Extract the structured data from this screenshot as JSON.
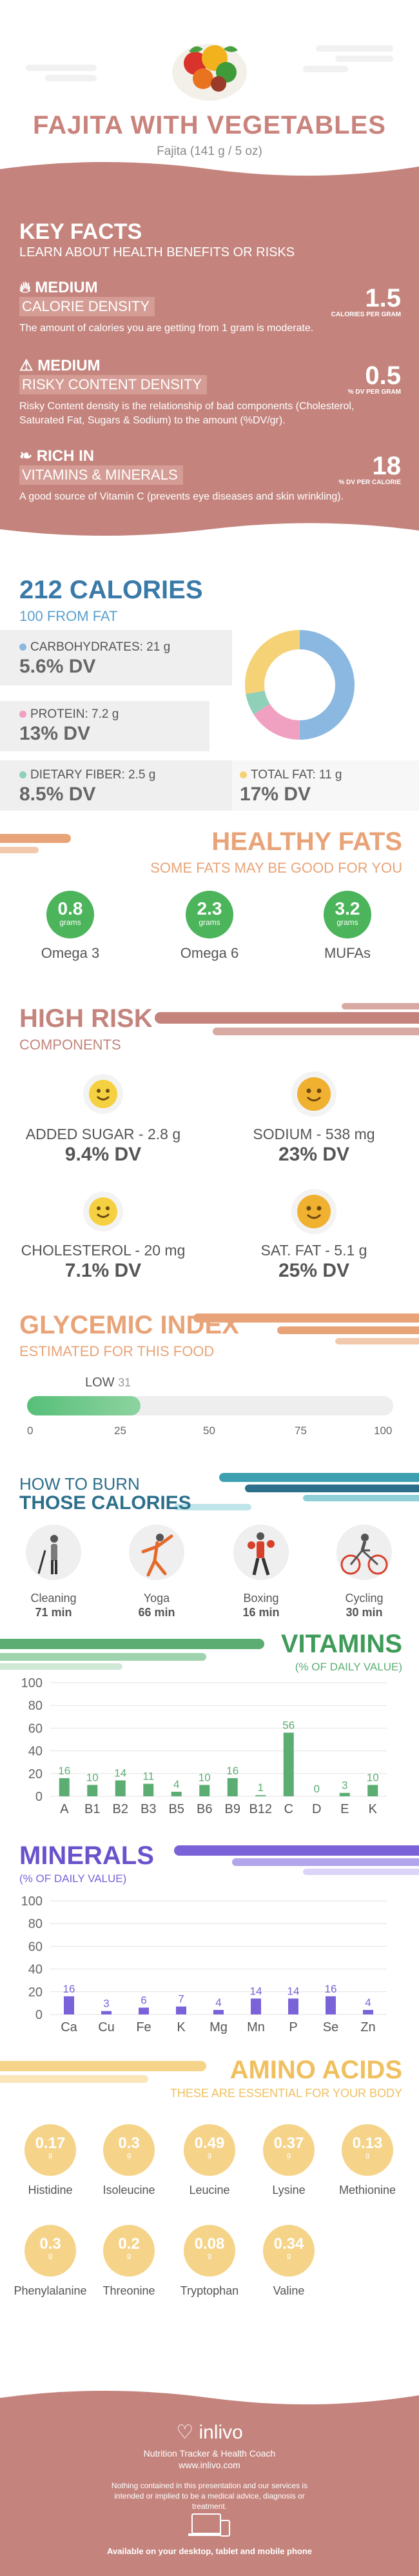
{
  "header": {
    "title": "FAJITA WITH VEGETABLES",
    "subtitle": "Fajita (141 g / 5 oz)"
  },
  "key_facts": {
    "title": "KEY FACTS",
    "subtitle": "LEARN ABOUT HEALTH BENEFITS OR RISKS",
    "facts": [
      {
        "icon": "flame-icon",
        "level": "MEDIUM",
        "label": "CALORIE DENSITY",
        "value": "1.5",
        "unit": "CALORIES PER GRAM",
        "description": "The amount of calories you are getting from 1 gram is moderate."
      },
      {
        "icon": "warning-icon",
        "level": "MEDIUM",
        "label": "RISKY CONTENT DENSITY",
        "value": "0.5",
        "unit": "% DV PER GRAM",
        "description": "Risky Content density is the relationship of bad components (Cholesterol, Saturated Fat, Sugars & Sodium) to the amount (%DV/gr)."
      },
      {
        "icon": "leaf-icon",
        "level": "RICH IN",
        "label": "VITAMINS & MINERALS",
        "value": "18",
        "unit": "% DV PER CALORIE",
        "description": "A good source of Vitamin C (prevents eye diseases and skin wrinkling)."
      }
    ]
  },
  "calories": {
    "title": "212 CALORIES",
    "subtitle": "100 FROM FAT",
    "nutrients": [
      {
        "label": "CARBOHYDRATES: 21 g",
        "dv": "5.6% DV",
        "color": "#8ab8e0"
      },
      {
        "label": "PROTEIN: 7.2 g",
        "dv": "13% DV",
        "color": "#f0a0c0"
      },
      {
        "label": "DIETARY FIBER: 2.5 g",
        "dv": "8.5% DV",
        "color": "#8fd0b8"
      },
      {
        "label": "TOTAL FAT: 11 g",
        "dv": "17% DV",
        "color": "#f5d276"
      }
    ]
  },
  "healthy_fats": {
    "title": "HEALTHY FATS",
    "subtitle": "SOME FATS MAY BE GOOD FOR YOU",
    "items": [
      {
        "value": "0.8",
        "unit": "grams",
        "label": "Omega 3"
      },
      {
        "value": "2.3",
        "unit": "grams",
        "label": "Omega 6"
      },
      {
        "value": "3.2",
        "unit": "grams",
        "label": "MUFAs"
      }
    ]
  },
  "high_risk": {
    "title": "HIGH RISK",
    "subtitle": "COMPONENTS",
    "items": [
      {
        "label": "ADDED SUGAR - 2.8 g",
        "dv": "9.4% DV",
        "color": "#f5d040"
      },
      {
        "label": "SODIUM - 538 mg",
        "dv": "23% DV",
        "color": "#f0b030"
      },
      {
        "label": "CHOLESTEROL - 20 mg",
        "dv": "7.1% DV",
        "color": "#f5d040"
      },
      {
        "label": "SAT. FAT - 5.1 g",
        "dv": "25% DV",
        "color": "#f0b030"
      }
    ]
  },
  "glycemic": {
    "title": "GLYCEMIC INDEX",
    "subtitle": "ESTIMATED FOR THIS FOOD",
    "level": "LOW",
    "value": 31,
    "ticks": [
      "0",
      "25",
      "50",
      "75",
      "100"
    ]
  },
  "burn": {
    "title_line1": "HOW TO BURN",
    "title_line2": "THOSE CALORIES",
    "activities": [
      {
        "name": "Cleaning",
        "minutes": "71 min",
        "icon": "cleaning-icon"
      },
      {
        "name": "Yoga",
        "minutes": "66 min",
        "icon": "yoga-icon"
      },
      {
        "name": "Boxing",
        "minutes": "16 min",
        "icon": "boxing-icon"
      },
      {
        "name": "Cycling",
        "minutes": "30 min",
        "icon": "cycling-icon"
      }
    ]
  },
  "vitamins": {
    "title": "VITAMINS",
    "subtitle": "(% OF DAILY VALUE)"
  },
  "minerals": {
    "title": "MINERALS",
    "subtitle": "(% OF DAILY VALUE)"
  },
  "chart_data": [
    {
      "type": "bar",
      "categories": [
        "A",
        "B1",
        "B2",
        "B3",
        "B5",
        "B6",
        "B9",
        "B12",
        "C",
        "D",
        "E",
        "K"
      ],
      "values": [
        16,
        10,
        14,
        11,
        4,
        10,
        16,
        1,
        56,
        0,
        3,
        10
      ],
      "title": "VITAMINS",
      "ylim": [
        0,
        100
      ],
      "yticks": [
        0,
        20,
        40,
        60,
        80,
        100
      ],
      "grid": true,
      "color": "#5cad72"
    },
    {
      "type": "bar",
      "categories": [
        "Ca",
        "Cu",
        "Fe",
        "K",
        "Mg",
        "Mn",
        "P",
        "Se",
        "Zn"
      ],
      "values": [
        16,
        3,
        6,
        7,
        4,
        14,
        14,
        16,
        4
      ],
      "title": "MINERALS",
      "ylim": [
        0,
        100
      ],
      "yticks": [
        0,
        20,
        40,
        60,
        80,
        100
      ],
      "grid": true,
      "color": "#7a62d8"
    }
  ],
  "amino": {
    "title": "AMINO ACIDS",
    "subtitle": "THESE ARE ESSENTIAL FOR YOUR BODY",
    "items": [
      {
        "value": "0.17",
        "unit": "g",
        "label": "Histidine"
      },
      {
        "value": "0.3",
        "unit": "g",
        "label": "Isoleucine"
      },
      {
        "value": "0.49",
        "unit": "g",
        "label": "Leucine"
      },
      {
        "value": "0.37",
        "unit": "g",
        "label": "Lysine"
      },
      {
        "value": "0.13",
        "unit": "g",
        "label": "Methionine"
      },
      {
        "value": "0.3",
        "unit": "g",
        "label": "Phenylalanine"
      },
      {
        "value": "0.2",
        "unit": "g",
        "label": "Threonine"
      },
      {
        "value": "0.08",
        "unit": "g",
        "label": "Tryptophan"
      },
      {
        "value": "0.34",
        "unit": "g",
        "label": "Valine"
      }
    ]
  },
  "footer": {
    "brand": "inlivo",
    "tagline": "Nutrition Tracker & Health Coach",
    "url": "www.inlivo.com",
    "disclaimer": "Nothing contained in this presentation and our services is intended or implied to be a medical advice, diagnosis or treatment.",
    "availability": "Available on your desktop, tablet and mobile phone"
  }
}
